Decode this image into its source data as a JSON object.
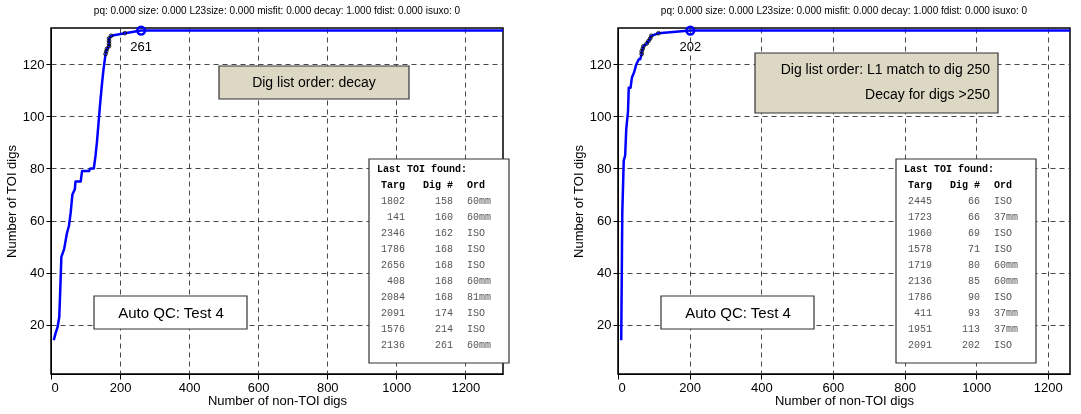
{
  "chart_data": [
    {
      "type": "line",
      "title": "pq: 0.000 size: 0.000 L23size: 0.000 misfit: 0.000 decay: 1.000 fdist: 0.000 isuxo: 0",
      "xlabel": "Number of non-TOI digs",
      "ylabel": "Number of TOI digs",
      "xlim": [
        0,
        1309
      ],
      "ylim": [
        1,
        134
      ],
      "xticks": [
        0,
        200,
        400,
        600,
        800,
        1000,
        1200
      ],
      "yticks": [
        20,
        40,
        60,
        80,
        100,
        120
      ],
      "grid": true,
      "series": [
        {
          "type": "line",
          "color": "#0000ff",
          "x": [
            8,
            14,
            19,
            24,
            27,
            30,
            38,
            46,
            52,
            57,
            62,
            69,
            71,
            86,
            90,
            110,
            114,
            124,
            129,
            133,
            138,
            143,
            148,
            152,
            158,
            160,
            162,
            168,
            168,
            168,
            168,
            174,
            214,
            261,
            1309
          ],
          "values": [
            14,
            17,
            19,
            23,
            34,
            46,
            49,
            55,
            58,
            63,
            70,
            72,
            75,
            75,
            79,
            79,
            80,
            80,
            85,
            90,
            98,
            106,
            113,
            118,
            124,
            125,
            126,
            127,
            128,
            129,
            130,
            131,
            132,
            133,
            133
          ]
        },
        {
          "type": "scatter",
          "color": "#000000",
          "x": [
            158,
            160,
            162,
            168,
            168,
            168,
            168,
            174,
            214
          ],
          "values": [
            124,
            125,
            126,
            127,
            128,
            129,
            130,
            131,
            132
          ]
        },
        {
          "type": "scatter",
          "color": "#0000ff",
          "x": [
            261
          ],
          "values": [
            133
          ]
        }
      ],
      "annotations": [
        "Dig list order: decay",
        "Auto QC: Test 4",
        {
          "text": "261",
          "x": 261,
          "y": 133
        },
        "Last TOI found:",
        "Targ  Dig #   Ord",
        "1802    158   60mm",
        " 141    160   60mm",
        "2346    162   ISO",
        "1786    168   ISO",
        "2656    168   ISO",
        " 408    168   60mm",
        "2084    168   81mm",
        "2091    174   ISO",
        "1576    214   ISO",
        "2136    261   60mm"
      ]
    },
    {
      "type": "line",
      "title": "pq: 0.000 size: 0.000 L23size: 0.000 misfit: 0.000 decay: 1.000 fdist: 0.000 isuxo: 0",
      "xlabel": "Number of non-TOI digs",
      "ylabel": "Number of TOI digs",
      "xlim": [
        0,
        1262
      ],
      "ylim": [
        1,
        134
      ],
      "xticks": [
        0,
        200,
        400,
        600,
        800,
        1000,
        1200
      ],
      "yticks": [
        20,
        40,
        60,
        80,
        100,
        120
      ],
      "grid": true,
      "series": [
        {
          "type": "line",
          "color": "#0000ff",
          "x": [
            9,
            12,
            16,
            20,
            23,
            28,
            30,
            35,
            39,
            45,
            51,
            58,
            62,
            66,
            66,
            69,
            71,
            80,
            85,
            90,
            93,
            113,
            202,
            1262
          ],
          "values": [
            14,
            63,
            83,
            85,
            95,
            102,
            111,
            111,
            115,
            117,
            120,
            122,
            122,
            124,
            125,
            126,
            127,
            128,
            129,
            130,
            131,
            132,
            133,
            133
          ]
        },
        {
          "type": "scatter",
          "color": "#000000",
          "x": [
            66,
            66,
            69,
            71,
            80,
            85,
            90,
            93,
            113
          ],
          "values": [
            124,
            125,
            126,
            127,
            128,
            129,
            130,
            131,
            132
          ]
        },
        {
          "type": "scatter",
          "color": "#0000ff",
          "x": [
            202
          ],
          "values": [
            133
          ]
        }
      ],
      "annotations": [
        "Dig list order: L1 match to dig 250\nDecay for digs >250",
        "Auto QC: Test 4",
        {
          "text": "202",
          "x": 202,
          "y": 133
        },
        "Last TOI found:",
        "Targ  Dig #   Ord",
        "2445     66   ISO",
        "1723     66   37mm",
        "1960     69   ISO",
        "1578     71   ISO",
        "1719     80   60mm",
        "2136     85   60mm",
        "1786     90   ISO",
        " 411     93   37mm",
        "1951    113   37mm",
        "2091    202   ISO"
      ]
    }
  ]
}
